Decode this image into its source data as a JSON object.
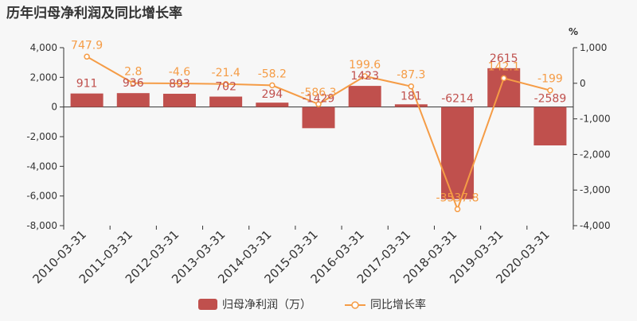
{
  "chart_data": {
    "type": "bar",
    "title": "历年归母净利润及同比增长率",
    "categories": [
      "2010-03-31",
      "2011-03-31",
      "2012-03-31",
      "2013-03-31",
      "2014-03-31",
      "2015-03-31",
      "2016-03-31",
      "2017-03-31",
      "2018-03-31",
      "2019-03-31",
      "2020-03-31"
    ],
    "series": [
      {
        "name": "归母净利润（万）",
        "type": "bar",
        "axis": "left",
        "values": [
          911,
          936,
          893,
          702,
          294,
          -1429,
          1423,
          181,
          -6214,
          2615,
          -2589
        ],
        "labels": [
          "911",
          "936",
          "893",
          "702",
          "294",
          "-1429",
          "1423",
          "181",
          "-6214",
          "2615",
          "-2589"
        ]
      },
      {
        "name": "同比增长率",
        "type": "line",
        "axis": "right",
        "values": [
          747.9,
          2.8,
          -4.6,
          -21.4,
          -58.2,
          -586.3,
          199.6,
          -87.3,
          -3537.8,
          142.1,
          -199
        ],
        "labels": [
          "747.9",
          "2.8",
          "-4.6",
          "-21.4",
          "-58.2",
          "-586.3",
          "199.6",
          "-87.3",
          "-3537.8",
          "142.1",
          "-199"
        ]
      }
    ],
    "y_left": {
      "lim": [
        -8000,
        4000
      ],
      "ticks": [
        4000,
        2000,
        0,
        -2000,
        -4000,
        -6000,
        -8000
      ],
      "tick_labels": [
        "4,000",
        "2,000",
        "0",
        "-2,000",
        "-4,000",
        "-6,000",
        "-8,000"
      ]
    },
    "y_right": {
      "label": "%",
      "lim": [
        -4000,
        1000
      ],
      "ticks": [
        1000,
        0,
        -1000,
        -2000,
        -3000,
        -4000
      ],
      "tick_labels": [
        "1,000",
        "0",
        "-1,000",
        "-2,000",
        "-3,000",
        "-4,000"
      ]
    },
    "grid": false,
    "legend": {
      "placement": "bottom-center"
    },
    "colors": {
      "bar": "#c0504d",
      "line": "#f59c46",
      "bar_label": "#c0504d",
      "line_label": "#f59c46",
      "axis": "#333333"
    }
  }
}
